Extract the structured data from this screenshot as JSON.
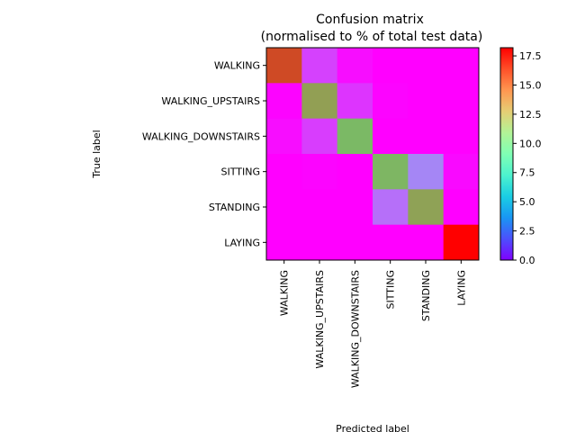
{
  "chart_data": {
    "type": "heatmap",
    "title": "Confusion matrix",
    "subtitle": "(normalised to % of total test data)",
    "xlabel": "Predicted label",
    "ylabel": "True label",
    "row_labels": [
      "WALKING",
      "WALKING_UPSTAIRS",
      "WALKING_DOWNSTAIRS",
      "SITTING",
      "STANDING",
      "LAYING"
    ],
    "col_labels": [
      "WALKING",
      "WALKING_UPSTAIRS",
      "WALKING_DOWNSTAIRS",
      "SITTING",
      "STANDING",
      "LAYING"
    ],
    "values": [
      [
        16.5,
        1.5,
        0.3,
        0.0,
        0.0,
        0.0
      ],
      [
        0.1,
        14.3,
        1.2,
        0.1,
        0.0,
        0.0
      ],
      [
        0.3,
        1.4,
        13.5,
        0.0,
        0.0,
        0.0
      ],
      [
        0.0,
        0.1,
        0.0,
        13.6,
        3.2,
        0.2
      ],
      [
        0.0,
        0.0,
        0.0,
        2.6,
        14.2,
        0.0
      ],
      [
        0.0,
        0.0,
        0.0,
        0.0,
        0.0,
        18.2
      ]
    ],
    "colormap": "rainbow",
    "vmin": 0,
    "vmax": 18.2,
    "colorbar_ticks": [
      "0.0",
      "2.5",
      "5.0",
      "7.5",
      "10.0",
      "12.5",
      "15.0",
      "17.5"
    ],
    "colorbar_tick_values": [
      0,
      2.5,
      5,
      7.5,
      10,
      12.5,
      15,
      17.5
    ],
    "grid": false,
    "legend": "colorbar-right"
  }
}
